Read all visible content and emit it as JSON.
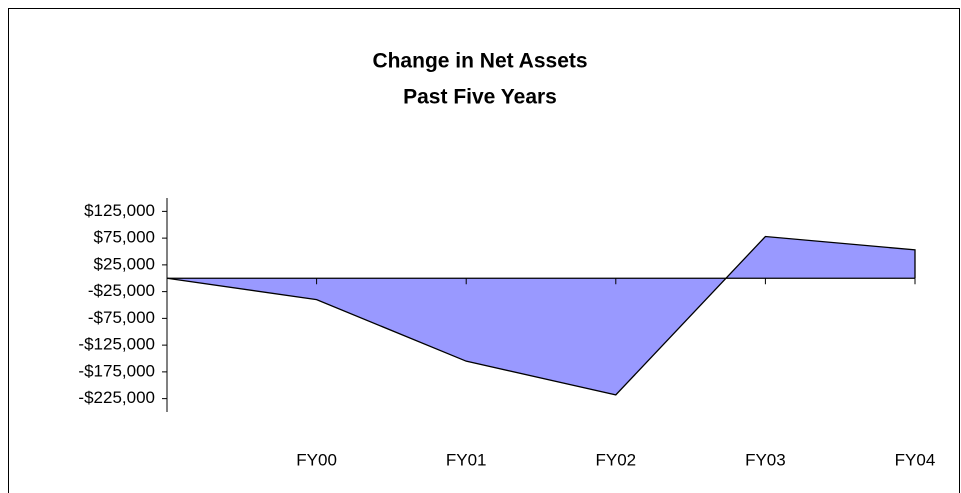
{
  "chart_data": {
    "type": "area",
    "title": [
      "Change in Net Assets",
      "Past Five Years"
    ],
    "categories": [
      null,
      "FY00",
      "FY01",
      "FY02",
      "FY03",
      "FY04"
    ],
    "values": [
      0,
      -40000,
      -155000,
      -218000,
      78000,
      53000
    ],
    "color": "#9999ff",
    "ylim": [
      -250000,
      150000
    ],
    "yticks": [
      {
        "value": 125000,
        "label": "$125,000"
      },
      {
        "value": 75000,
        "label": "$75,000"
      },
      {
        "value": 25000,
        "label": "$25,000"
      },
      {
        "value": -25000,
        "label": "-$25,000"
      },
      {
        "value": -75000,
        "label": "-$75,000"
      },
      {
        "value": -125000,
        "label": "-$125,000"
      },
      {
        "value": -175000,
        "label": "-$175,000"
      },
      {
        "value": -225000,
        "label": "-$225,000"
      }
    ]
  }
}
